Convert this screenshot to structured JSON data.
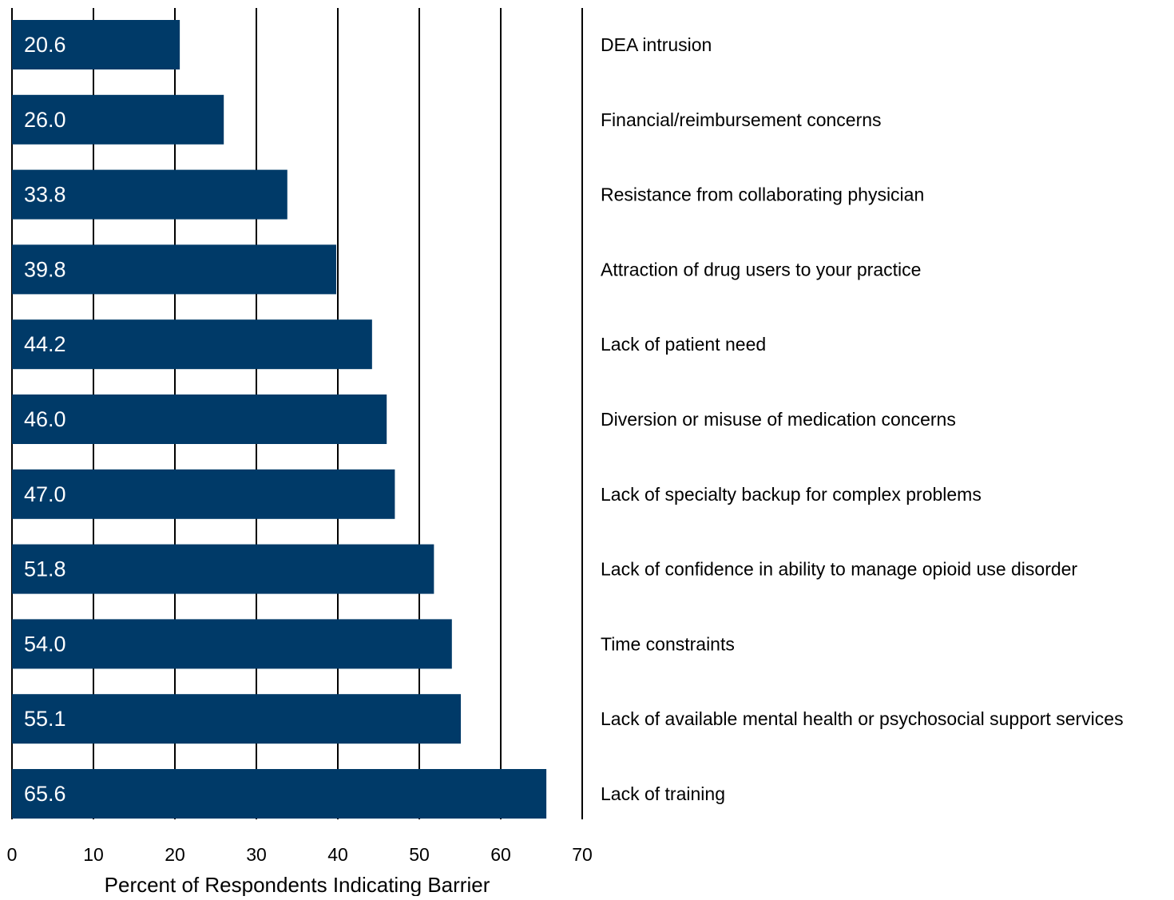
{
  "chart_data": {
    "type": "bar",
    "orientation": "horizontal",
    "categories": [
      "DEA intrusion",
      "Financial/reimbursement concerns",
      "Resistance from collaborating physician",
      "Attraction of drug users to your practice",
      "Lack of patient need",
      "Diversion or misuse of medication concerns",
      "Lack of specialty backup for complex problems",
      "Lack of confidence in ability to manage opioid use disorder",
      "Time constraints",
      "Lack of available mental health or psychosocial support services",
      "Lack of training"
    ],
    "values": [
      20.6,
      26.0,
      33.8,
      39.8,
      44.2,
      46.0,
      47.0,
      51.8,
      54.0,
      55.1,
      65.6
    ],
    "value_labels": [
      "20.6",
      "26.0",
      "33.8",
      "39.8",
      "44.2",
      "46.0",
      "47.0",
      "51.8",
      "54.0",
      "55.1",
      "65.6"
    ],
    "xlabel": "Percent of Respondents Indicating Barrier",
    "ylabel": "",
    "xlim": [
      0,
      70
    ],
    "xticks": [
      0,
      10,
      20,
      30,
      40,
      50,
      60,
      70
    ],
    "grid": true,
    "data_labels_inside_bars": true,
    "category_labels_position": "right",
    "bar_color": "#003a68",
    "label_color": "#ffffff",
    "grid_color": "#000000",
    "text_color": "#000000"
  }
}
